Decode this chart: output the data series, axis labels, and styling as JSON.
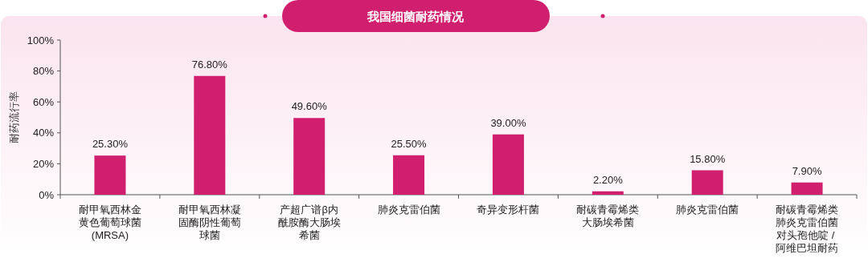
{
  "chart_data": {
    "type": "bar",
    "title": "我国细菌耐药情况",
    "ylabel": "耐药流行率",
    "categories": [
      "耐甲氧西林金黄色葡萄球菌(MRSA)",
      "耐甲氧西林凝固酶阴性葡萄球菌",
      "产超广谱β内酰胺酶大肠埃希菌",
      "肺炎克雷伯菌",
      "奇异变形杆菌",
      "耐碳青霉烯类大肠埃希菌",
      "肺炎克雷伯菌",
      "耐碳青霉烯类肺炎克雷伯菌对头孢他啶 / 阿维巴坦耐药"
    ],
    "values": [
      25.3,
      76.8,
      49.6,
      25.5,
      39.0,
      2.2,
      15.8,
      7.9
    ],
    "value_labels": [
      "25.30%",
      "76.80%",
      "49.60%",
      "25.50%",
      "39.00%",
      "2.20%",
      "15.80%",
      "7.90%"
    ],
    "color": "#d11f6f",
    "ylim": [
      0,
      100
    ],
    "yticks": [
      {
        "value": 0,
        "label": "0%"
      },
      {
        "value": 20,
        "label": "20%"
      },
      {
        "value": 40,
        "label": "40%"
      },
      {
        "value": 60,
        "label": "60%"
      },
      {
        "value": 80,
        "label": "80%"
      },
      {
        "value": 100,
        "label": "100%"
      }
    ],
    "grid": false
  }
}
